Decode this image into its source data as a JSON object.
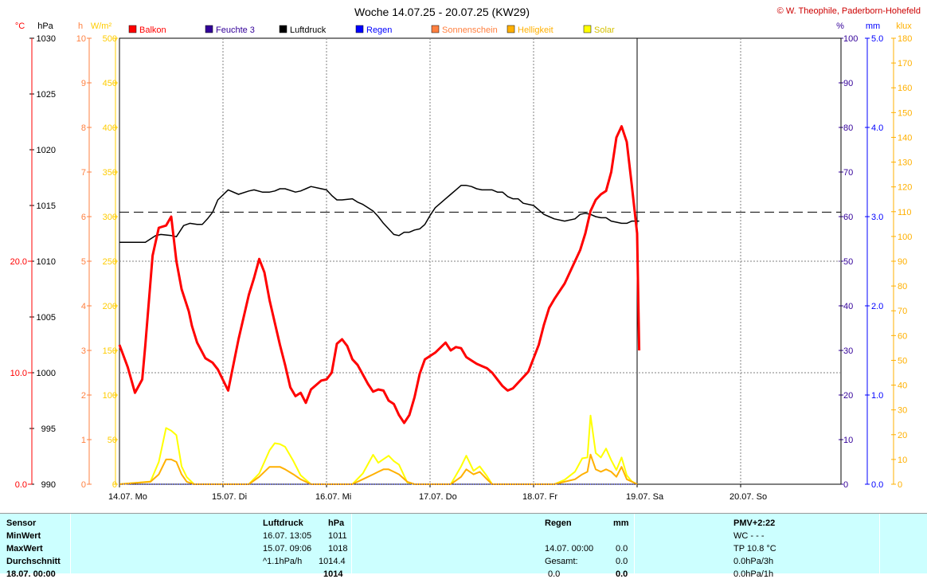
{
  "header": {
    "title": "Woche 14.07.25 - 20.07.25 (KW29)",
    "credit": "© W. Theophile, Paderborn-Hohefeld"
  },
  "unit_labels": {
    "celsius": "°C",
    "hpa": "hPa",
    "h": "h",
    "wm2": "W/m²",
    "percent": "%",
    "mm": "mm",
    "klux": "klux"
  },
  "colors": {
    "temperature": "#ff0000",
    "pressure": "#000000",
    "solar": "#ffff00",
    "brightness": "#ffb000",
    "sunshine": "#ff8040",
    "rain": "#0000ff",
    "humidity": "#330099",
    "axis_celsius": "#ff0000",
    "axis_hours": "#ff8040",
    "axis_wm2": "#ffcc00",
    "axis_percent": "#330099",
    "axis_mm": "#0000ff",
    "axis_klux": "#ffb000",
    "grid": "#808080",
    "stats_bg": "#ccffff"
  },
  "legend": [
    {
      "label": "Balkon",
      "color": "#ff0000"
    },
    {
      "label": "Feuchte 3",
      "color": "#330099"
    },
    {
      "label": "Luftdruck",
      "color": "#000000"
    },
    {
      "label": "Regen",
      "color": "#0000ff"
    },
    {
      "label": "Sonnenschein",
      "color": "#ff8040"
    },
    {
      "label": "Helligkeit",
      "color": "#ffb000"
    },
    {
      "label": "Solar",
      "color": "#ffff00"
    }
  ],
  "axes": {
    "celsius": {
      "ticks": [
        "20.0",
        "10.0",
        "0.0"
      ],
      "values": [
        20,
        10,
        0
      ],
      "range": [
        0,
        40
      ]
    },
    "hpa": {
      "ticks": [
        "1030",
        "1025",
        "1020",
        "1015",
        "1010",
        "1005",
        "1000",
        "995",
        "990"
      ],
      "range": [
        990,
        1030
      ]
    },
    "hours": {
      "ticks": [
        "10",
        "9",
        "8",
        "7",
        "6",
        "5",
        "4",
        "3",
        "2",
        "1",
        "0"
      ],
      "range": [
        0,
        10
      ]
    },
    "wm2": {
      "ticks": [
        "500",
        "450",
        "400",
        "350",
        "300",
        "250",
        "200",
        "150",
        "100",
        "50",
        "0"
      ],
      "range": [
        0,
        500
      ]
    },
    "percent": {
      "ticks": [
        "100",
        "90",
        "80",
        "70",
        "60",
        "50",
        "40",
        "30",
        "20",
        "10",
        "0"
      ],
      "range": [
        0,
        100
      ]
    },
    "mm": {
      "ticks": [
        "5.0",
        "4.0",
        "3.0",
        "2.0",
        "1.0",
        "0.0"
      ],
      "range": [
        0,
        5
      ]
    },
    "klux": {
      "ticks": [
        "180",
        "170",
        "160",
        "150",
        "140",
        "130",
        "120",
        "110",
        "100",
        "90",
        "80",
        "70",
        "60",
        "50",
        "40",
        "30",
        "20",
        "10",
        "0"
      ],
      "range": [
        0,
        180
      ]
    },
    "days": [
      "14.07. Mo",
      "15.07. Di",
      "16.07. Mi",
      "17.07. Do",
      "18.07. Fr",
      "19.07. Sa",
      "20.07. So"
    ]
  },
  "chart_data": {
    "type": "line",
    "x_unit": "day offset from 14.07. 00:00",
    "xlim": [
      0,
      7
    ],
    "series": [
      {
        "name": "Balkon",
        "axis": "celsius",
        "x": [
          0,
          0.08,
          0.15,
          0.22,
          0.25,
          0.32,
          0.38,
          0.45,
          0.5,
          0.55,
          0.6,
          0.67,
          0.7,
          0.75,
          0.83,
          0.9,
          0.95,
          1.05,
          1.15,
          1.25,
          1.3,
          1.35,
          1.4,
          1.45,
          1.5,
          1.55,
          1.6,
          1.65,
          1.7,
          1.75,
          1.8,
          1.85,
          1.95,
          2.0,
          2.05,
          2.1,
          2.15,
          2.2,
          2.25,
          2.3,
          2.4,
          2.45,
          2.5,
          2.55,
          2.6,
          2.65,
          2.7,
          2.75,
          2.8,
          2.85,
          2.9,
          2.95,
          3.05,
          3.15,
          3.2,
          3.25,
          3.3,
          3.35,
          3.4,
          3.45,
          3.5,
          3.55,
          3.6,
          3.65,
          3.7,
          3.75,
          3.8,
          3.85,
          3.95,
          4.05,
          4.1,
          4.15,
          4.2,
          4.3,
          4.4,
          4.45,
          4.5,
          4.55,
          4.6,
          4.65,
          4.7,
          4.75,
          4.8,
          4.85,
          4.9,
          4.95,
          5.0,
          5.02
        ],
        "y": [
          12.5,
          10.5,
          8.2,
          9.4,
          12.5,
          20.5,
          23.0,
          23.2,
          24.0,
          20.0,
          17.5,
          15.5,
          14.2,
          12.7,
          11.3,
          10.9,
          10.3,
          8.4,
          13.0,
          17.0,
          18.5,
          20.2,
          19.0,
          16.5,
          14.5,
          12.5,
          10.7,
          8.7,
          7.9,
          8.2,
          7.3,
          8.5,
          9.3,
          9.4,
          10.0,
          12.6,
          13.0,
          12.4,
          11.2,
          10.7,
          9.0,
          8.3,
          8.5,
          8.4,
          7.5,
          7.2,
          6.2,
          5.5,
          6.2,
          7.8,
          9.9,
          11.2,
          11.8,
          12.7,
          12.0,
          12.3,
          12.2,
          11.4,
          11.1,
          10.8,
          10.6,
          10.4,
          10.0,
          9.4,
          8.8,
          8.4,
          8.6,
          9.1,
          10.1,
          12.5,
          14.3,
          15.8,
          16.6,
          18.0,
          20.0,
          21.0,
          22.5,
          24.5,
          25.5,
          26.0,
          26.3,
          28.0,
          31.1,
          32.1,
          30.7,
          26.7,
          22.5,
          12.0
        ],
        "comment": "temperature in °C, read from left red axis (20.0 / 10.0 / 0.0)"
      },
      {
        "name": "Luftdruck",
        "axis": "hpa",
        "x": [
          0,
          0.25,
          0.3,
          0.35,
          0.4,
          0.5,
          0.55,
          0.62,
          0.68,
          0.75,
          0.8,
          0.85,
          0.9,
          0.95,
          1.05,
          1.15,
          1.25,
          1.3,
          1.38,
          1.45,
          1.5,
          1.55,
          1.6,
          1.7,
          1.75,
          1.8,
          1.85,
          1.95,
          2.0,
          2.05,
          2.1,
          2.15,
          2.25,
          2.3,
          2.35,
          2.4,
          2.45,
          2.5,
          2.55,
          2.65,
          2.7,
          2.75,
          2.8,
          2.85,
          2.9,
          2.95,
          3.0,
          3.05,
          3.1,
          3.15,
          3.2,
          3.25,
          3.3,
          3.35,
          3.4,
          3.45,
          3.5,
          3.55,
          3.6,
          3.65,
          3.7,
          3.75,
          3.8,
          3.85,
          3.9,
          4.0,
          4.05,
          4.1,
          4.15,
          4.2,
          4.3,
          4.4,
          4.45,
          4.5,
          4.55,
          4.6,
          4.65,
          4.7,
          4.75,
          4.8,
          4.85,
          4.9,
          4.95,
          5.0,
          5.02
        ],
        "y": [
          1011.7,
          1011.7,
          1012.0,
          1012.3,
          1012.4,
          1012.3,
          1012.2,
          1013.2,
          1013.4,
          1013.3,
          1013.3,
          1013.8,
          1014.4,
          1015.5,
          1016.4,
          1016.0,
          1016.3,
          1016.4,
          1016.2,
          1016.2,
          1016.3,
          1016.5,
          1016.5,
          1016.2,
          1016.3,
          1016.5,
          1016.7,
          1016.5,
          1016.4,
          1015.9,
          1015.5,
          1015.5,
          1015.6,
          1015.3,
          1015.1,
          1014.8,
          1014.5,
          1014.0,
          1013.4,
          1012.4,
          1012.3,
          1012.6,
          1012.6,
          1012.8,
          1012.9,
          1013.3,
          1014.1,
          1014.8,
          1015.2,
          1015.6,
          1016.0,
          1016.4,
          1016.8,
          1016.8,
          1016.7,
          1016.5,
          1016.4,
          1016.4,
          1016.4,
          1016.2,
          1016.2,
          1015.8,
          1015.6,
          1015.6,
          1015.2,
          1015.0,
          1014.6,
          1014.2,
          1014.0,
          1013.8,
          1013.6,
          1013.8,
          1014.2,
          1014.3,
          1014.2,
          1014.0,
          1013.9,
          1013.9,
          1013.6,
          1013.5,
          1013.4,
          1013.4,
          1013.6,
          1013.6,
          1013.6
        ],
        "comment": "air pressure in hPa; rough reading, scale 990–1030"
      },
      {
        "name": "Solar",
        "axis": "wm2",
        "x": [
          0,
          0.3,
          0.38,
          0.45,
          0.5,
          0.55,
          0.6,
          0.65,
          0.72,
          0.78,
          0.85,
          1.0,
          1.25,
          1.35,
          1.45,
          1.5,
          1.55,
          1.6,
          1.68,
          1.75,
          1.85,
          2.0,
          2.25,
          2.35,
          2.45,
          2.5,
          2.55,
          2.6,
          2.65,
          2.7,
          2.78,
          2.85,
          3.0,
          3.2,
          3.3,
          3.35,
          3.42,
          3.48,
          3.55,
          3.6,
          3.7,
          4.0,
          4.2,
          4.3,
          4.4,
          4.47,
          4.52,
          4.55,
          4.6,
          4.65,
          4.7,
          4.75,
          4.8,
          4.85,
          4.9,
          4.95,
          5.0
        ],
        "y": [
          0,
          3,
          25,
          63,
          60,
          55,
          20,
          8,
          0,
          0,
          0,
          0,
          0,
          12,
          38,
          46,
          45,
          42,
          26,
          10,
          0,
          0,
          0,
          12,
          33,
          24,
          28,
          32,
          26,
          22,
          2,
          0,
          0,
          0,
          20,
          32,
          15,
          20,
          9,
          0,
          0,
          0,
          0,
          5,
          14,
          29,
          30,
          77,
          35,
          30,
          40,
          27,
          16,
          30,
          10,
          3,
          0
        ],
        "comment": "solar radiation in W/m², bottom area"
      },
      {
        "name": "Helligkeit",
        "axis": "klux",
        "x": [
          0,
          0.3,
          0.38,
          0.45,
          0.5,
          0.55,
          0.6,
          0.65,
          0.72,
          0.78,
          0.85,
          1.0,
          1.25,
          1.35,
          1.45,
          1.5,
          1.55,
          1.6,
          1.68,
          1.75,
          1.85,
          2.0,
          2.25,
          2.35,
          2.45,
          2.5,
          2.55,
          2.6,
          2.65,
          2.7,
          2.78,
          2.85,
          3.0,
          3.2,
          3.3,
          3.35,
          3.42,
          3.48,
          3.55,
          3.6,
          3.7,
          4.0,
          4.2,
          4.3,
          4.4,
          4.47,
          4.52,
          4.55,
          4.6,
          4.65,
          4.7,
          4.75,
          4.8,
          4.85,
          4.9,
          4.95,
          5.0
        ],
        "y": [
          0,
          1,
          4,
          10,
          10,
          9,
          4,
          1,
          0,
          0,
          0,
          0,
          0,
          3,
          7,
          7,
          7,
          6,
          4,
          2,
          0,
          0,
          0,
          2,
          4,
          5,
          6,
          6,
          5,
          4,
          1,
          0,
          0,
          0,
          3,
          6,
          4,
          5,
          2,
          0,
          0,
          0,
          0,
          1,
          2,
          4,
          5,
          12,
          6,
          5,
          6,
          5,
          3,
          7,
          2,
          1,
          0
        ],
        "comment": "brightness in klux"
      },
      {
        "name": "Regen",
        "axis": "mm",
        "x": [
          0,
          5.0
        ],
        "y": [
          0,
          0
        ]
      }
    ],
    "reference_lines": [
      {
        "axis": "hpa",
        "value": 1014.4,
        "style": "dashed",
        "label": "Durchschnitt"
      }
    ]
  },
  "stats": {
    "col1": [
      "Sensor",
      "MinWert",
      "MaxWert",
      "Durchschnitt",
      "18.07. 00:00"
    ],
    "press_head": [
      "Luftdruck",
      "hPa"
    ],
    "press_rows": [
      [
        "16.07.  13:05",
        "1011"
      ],
      [
        "15.07.  09:06",
        "1018"
      ],
      [
        "^1.1hPa/h",
        "1014.4"
      ],
      [
        "",
        "1014"
      ]
    ],
    "rain_head": [
      "Regen",
      "mm"
    ],
    "rain_rows": [
      [
        "",
        ""
      ],
      [
        "14.07.  00:00",
        "0.0"
      ],
      [
        "Gesamt:",
        "0.0"
      ],
      [
        "0.0",
        "0.0"
      ]
    ],
    "pmv_head": "PMV+2:22",
    "pmv_rows": [
      "WC - - -",
      "TP 10.8 °C",
      "0.0hPa/3h",
      "0.0hPa/1h"
    ]
  }
}
